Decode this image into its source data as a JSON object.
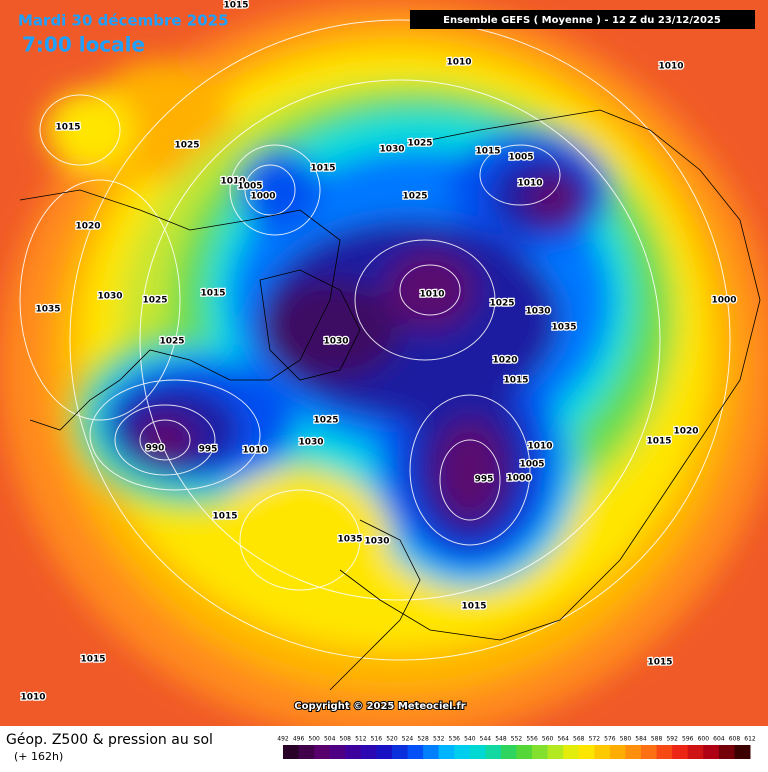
{
  "header": {
    "date": "Mardi 30 décembre 2025",
    "time": "7:00 locale",
    "model": "Ensemble GEFS  ( Moyenne )  -  12 Z du 23/12/2025"
  },
  "isobar_labels": [
    1015,
    1015,
    1025,
    1010,
    1005,
    1000,
    1015,
    1030,
    1025,
    1010,
    1010,
    1015,
    1005,
    1010,
    1025,
    1020,
    1030,
    1025,
    1015,
    1035,
    1025,
    1030,
    1010,
    1025,
    1030,
    1035,
    1020,
    1015,
    1000,
    1025,
    1030,
    990,
    995,
    1010,
    1010,
    1005,
    1000,
    995,
    1015,
    1035,
    1030,
    1015,
    1015,
    1015,
    1010,
    1015,
    1020
  ],
  "copyright": "Copyright © 2025 Meteociel.fr",
  "footer": {
    "title": "Géop. Z500 & pression au sol",
    "subtitle": "(+ 162h)"
  },
  "colorbar": [
    492,
    496,
    500,
    504,
    508,
    512,
    516,
    520,
    524,
    528,
    532,
    536,
    540,
    544,
    548,
    552,
    556,
    560,
    564,
    568,
    572,
    576,
    580,
    584,
    588,
    592,
    596,
    600,
    604,
    608,
    612
  ]
}
